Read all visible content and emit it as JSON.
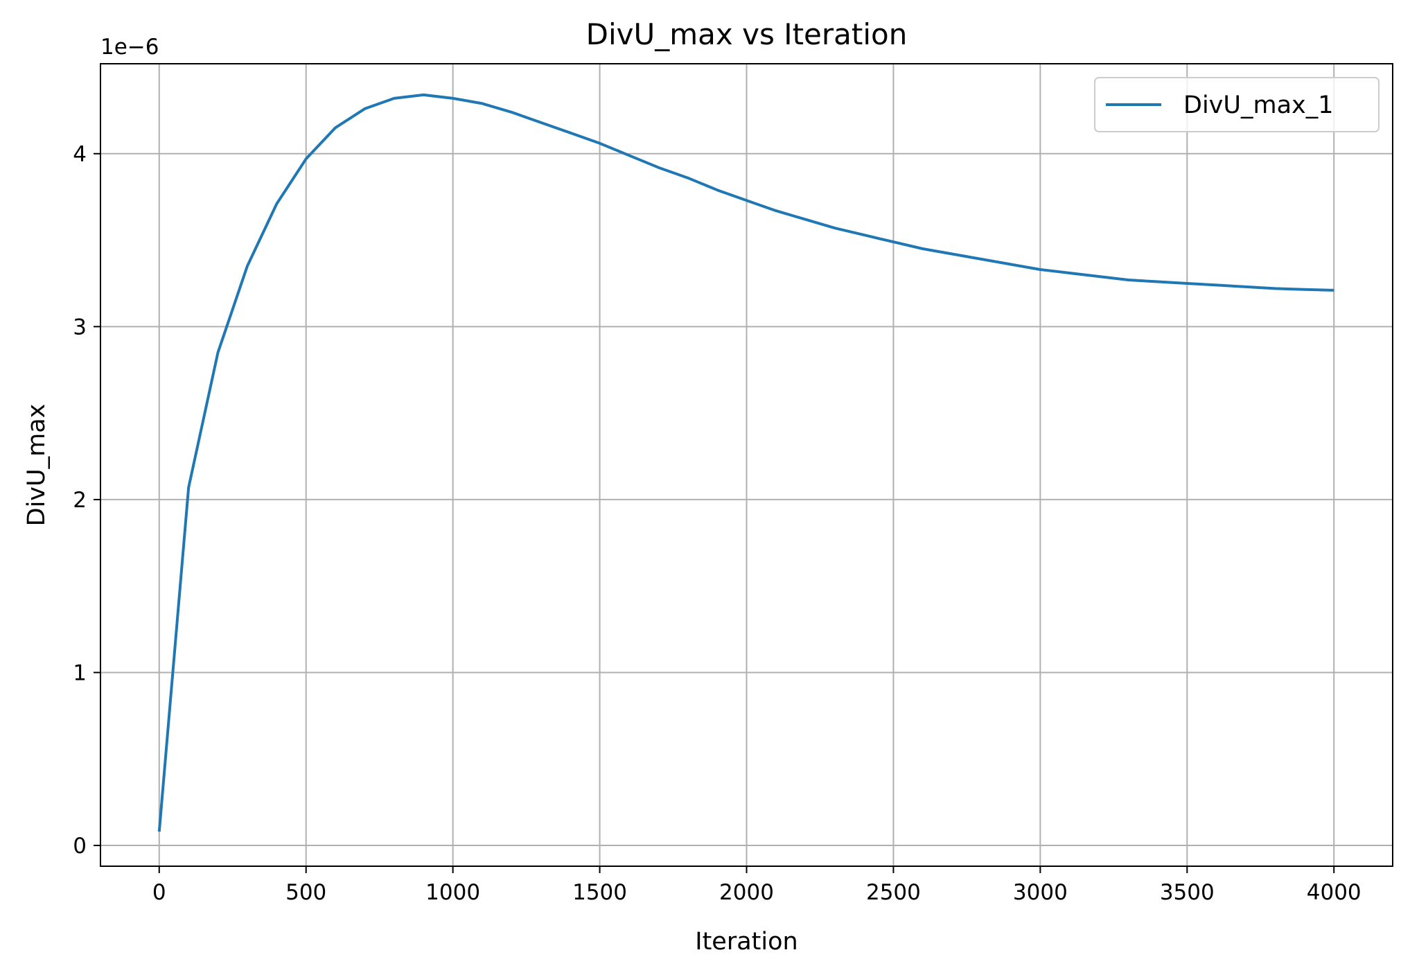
{
  "chart_data": {
    "type": "line",
    "title": "DivU_max vs Iteration",
    "xlabel": "Iteration",
    "ylabel": "DivU_max",
    "offset_label": "1e−6",
    "xlim": [
      -200,
      4200
    ],
    "ylim": [
      -0.12,
      4.52
    ],
    "y_scale_factor": 1e-06,
    "xticks": [
      0,
      500,
      1000,
      1500,
      2000,
      2500,
      3000,
      3500,
      4000
    ],
    "xtick_labels": [
      "0",
      "500",
      "1000",
      "1500",
      "2000",
      "2500",
      "3000",
      "3500",
      "4000"
    ],
    "yticks": [
      0,
      1,
      2,
      3,
      4
    ],
    "ytick_labels": [
      "0",
      "1",
      "2",
      "3",
      "4"
    ],
    "grid": true,
    "legend_position": "top-right",
    "series": [
      {
        "name": "DivU_max_1",
        "color": "#1f77b4",
        "x": [
          0,
          100,
          200,
          300,
          400,
          500,
          600,
          700,
          800,
          900,
          1000,
          1100,
          1200,
          1300,
          1400,
          1500,
          1600,
          1700,
          1800,
          1900,
          2000,
          2100,
          2200,
          2300,
          2400,
          2500,
          2600,
          2700,
          2800,
          2900,
          3000,
          3100,
          3200,
          3300,
          3400,
          3500,
          3600,
          3700,
          3800,
          3900,
          4000
        ],
        "y": [
          0.08,
          2.07,
          2.85,
          3.35,
          3.71,
          3.97,
          4.15,
          4.26,
          4.32,
          4.34,
          4.32,
          4.29,
          4.24,
          4.18,
          4.12,
          4.06,
          3.99,
          3.92,
          3.86,
          3.79,
          3.73,
          3.67,
          3.62,
          3.57,
          3.53,
          3.49,
          3.45,
          3.42,
          3.39,
          3.36,
          3.33,
          3.31,
          3.29,
          3.27,
          3.26,
          3.25,
          3.24,
          3.23,
          3.22,
          3.215,
          3.21
        ]
      }
    ]
  }
}
